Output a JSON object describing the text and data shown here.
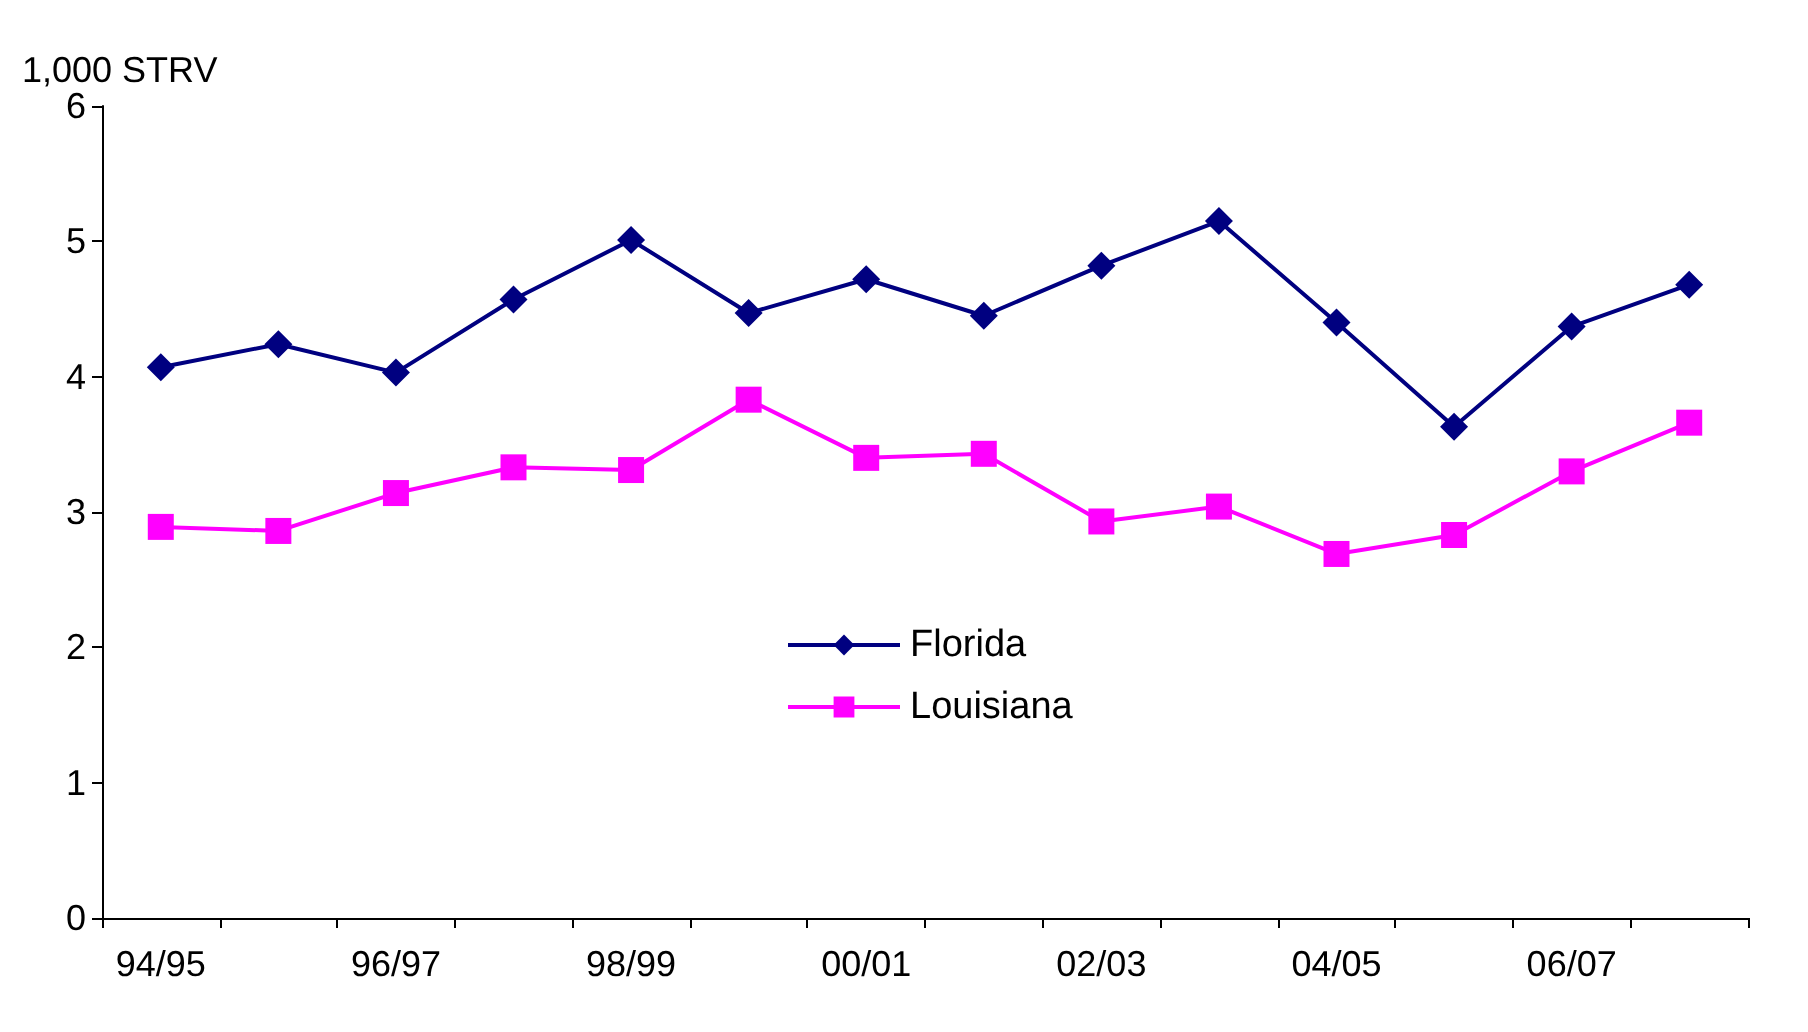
{
  "chart_data": {
    "type": "line",
    "ylabel": "1,000 STRV",
    "categories": [
      "94/95",
      null,
      "96/97",
      null,
      "98/99",
      null,
      "00/01",
      null,
      "02/03",
      null,
      "04/05",
      null,
      "06/07",
      null
    ],
    "series": [
      {
        "name": "Florida",
        "color": "#000080",
        "marker": "diamond",
        "values": [
          4.07,
          4.24,
          4.03,
          4.57,
          5.01,
          4.47,
          4.72,
          4.45,
          4.82,
          5.15,
          4.4,
          3.63,
          4.37,
          4.68
        ]
      },
      {
        "name": "Louisiana",
        "color": "#ff00ff",
        "marker": "square",
        "values": [
          2.89,
          2.86,
          3.14,
          3.33,
          3.31,
          3.83,
          3.4,
          3.43,
          2.93,
          3.04,
          2.69,
          2.83,
          3.3,
          3.66
        ]
      }
    ],
    "ylim": [
      0,
      6
    ],
    "yticks": [
      0,
      1,
      2,
      3,
      4,
      5,
      6
    ],
    "grid": false,
    "legend": "center",
    "line_style": "solid"
  }
}
